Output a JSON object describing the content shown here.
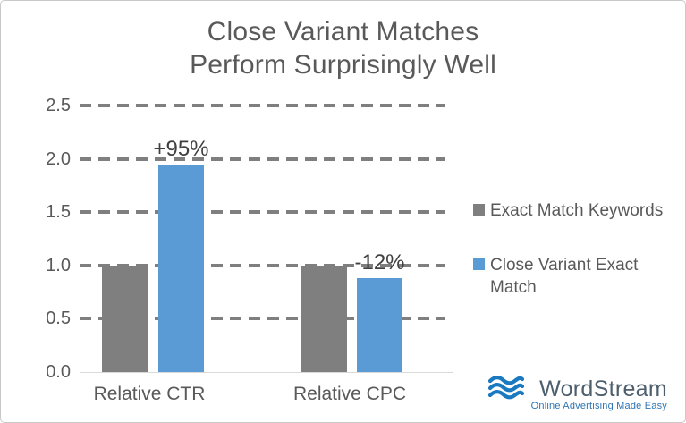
{
  "chart_data": {
    "type": "bar",
    "title": "Close Variant Matches Perform Surprisingly Well",
    "title_lines": [
      "Close Variant Matches",
      "Perform Surprisingly Well"
    ],
    "categories": [
      "Relative CTR",
      "Relative CPC"
    ],
    "series": [
      {
        "name": "Exact Match Keywords",
        "color": "#7f7f7f",
        "values": [
          1.0,
          1.0
        ],
        "point_labels": [
          "",
          ""
        ]
      },
      {
        "name": "Close Variant Exact Match",
        "color": "#5b9bd5",
        "values": [
          1.95,
          0.88
        ],
        "point_labels": [
          "+95%",
          "-12%"
        ]
      }
    ],
    "ylim": [
      0,
      2.5
    ],
    "yticks": [
      "0.0",
      "0.5",
      "1.0",
      "1.5",
      "2.0",
      "2.5"
    ],
    "grid": "horizontal-dashed",
    "gridline_color": "#7f7f7f",
    "axis_line_color": "#d9d9d9",
    "legend_position": "right"
  },
  "legend": {
    "items": [
      {
        "label": "Exact Match Keywords",
        "color": "#7f7f7f"
      },
      {
        "label": "Close Variant Exact Match",
        "color": "#5b9bd5"
      }
    ]
  },
  "logo": {
    "name": "WordStream",
    "tagline": "Online Advertising Made Easy",
    "wave_color": "#1b79c0",
    "name_color": "#4d5e6d",
    "tagline_color": "#2e75b5"
  }
}
